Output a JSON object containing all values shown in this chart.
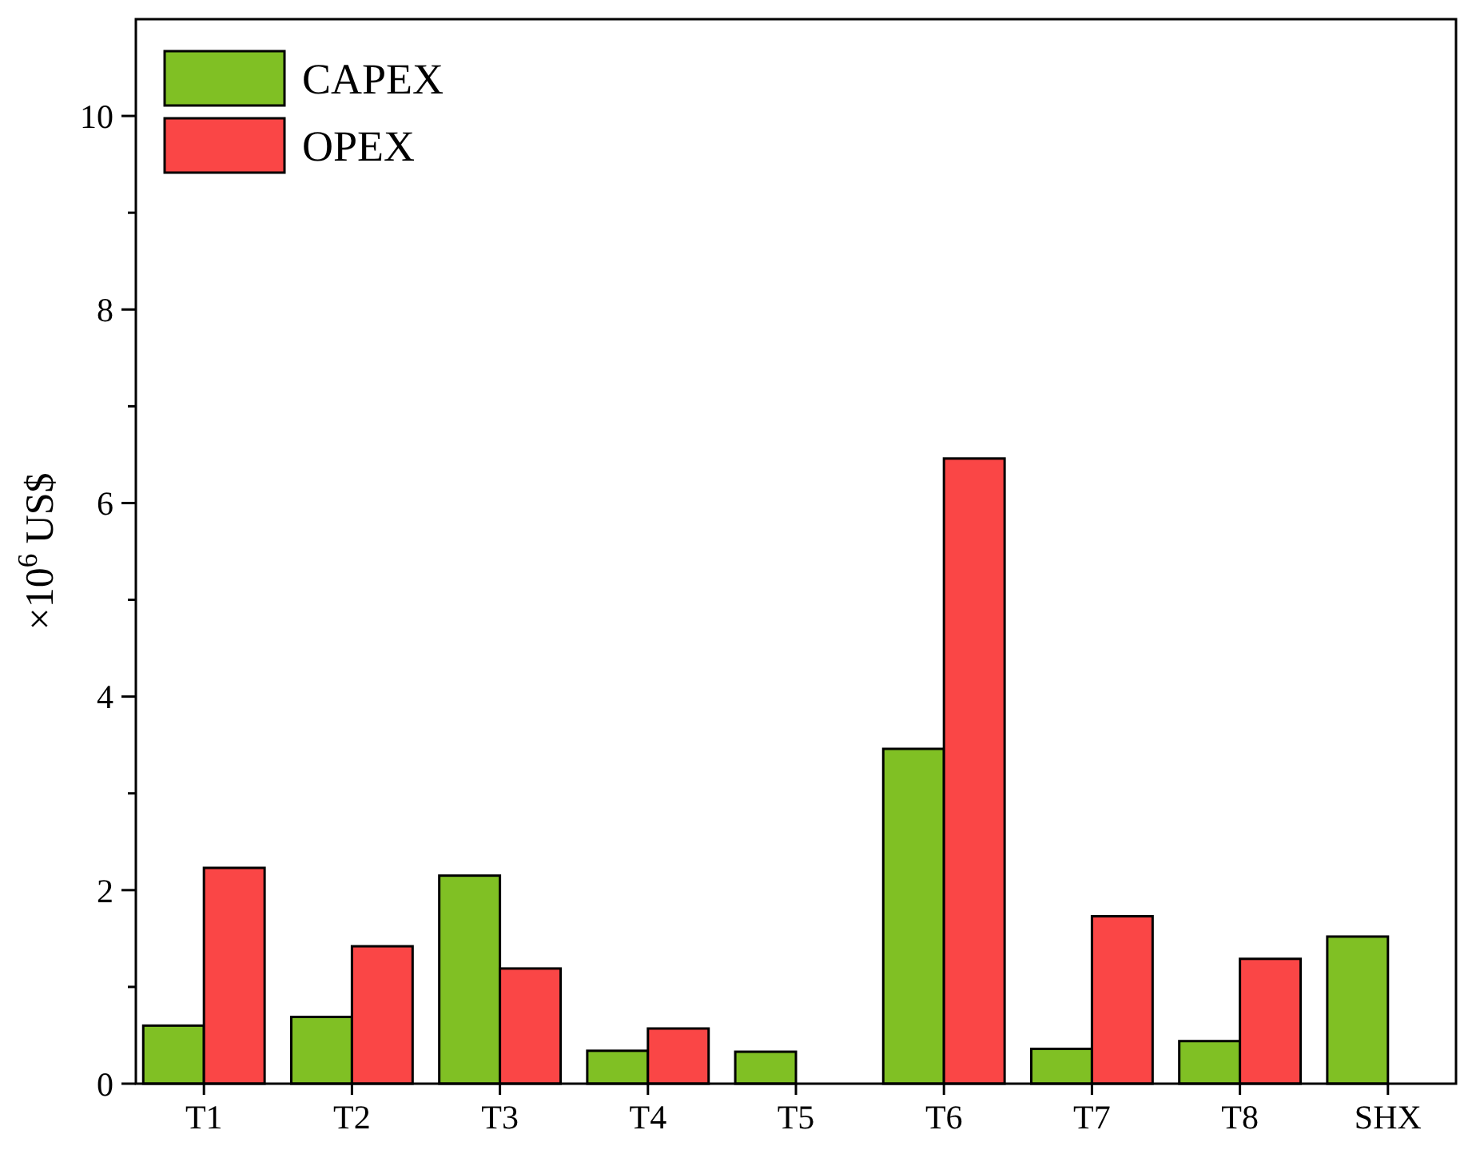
{
  "chart_data": {
    "type": "bar",
    "ylabel": "×10$^{6}$ US$",
    "categories": [
      "T1",
      "T2",
      "T3",
      "T4",
      "T5",
      "T6",
      "T7",
      "T8",
      "SHX"
    ],
    "series": [
      {
        "name": "CAPEX",
        "color": "#80c024",
        "values": [
          0.6,
          0.69,
          2.15,
          0.34,
          0.33,
          3.46,
          0.36,
          0.44,
          1.52
        ]
      },
      {
        "name": "OPEX",
        "color": "#fa4646",
        "values": [
          2.23,
          1.42,
          1.19,
          0.57,
          null,
          6.46,
          1.73,
          1.29,
          null
        ]
      }
    ],
    "ylim": [
      0,
      11
    ],
    "yticks": [
      0,
      {
        "value": 1,
        "label": null
      },
      2,
      {
        "value": 3,
        "label": null
      },
      4,
      {
        "value": 5,
        "label": null
      },
      6,
      {
        "value": 7,
        "label": null
      },
      8,
      {
        "value": 9,
        "label": null
      },
      10
    ],
    "legend": "top left",
    "grid": false
  }
}
